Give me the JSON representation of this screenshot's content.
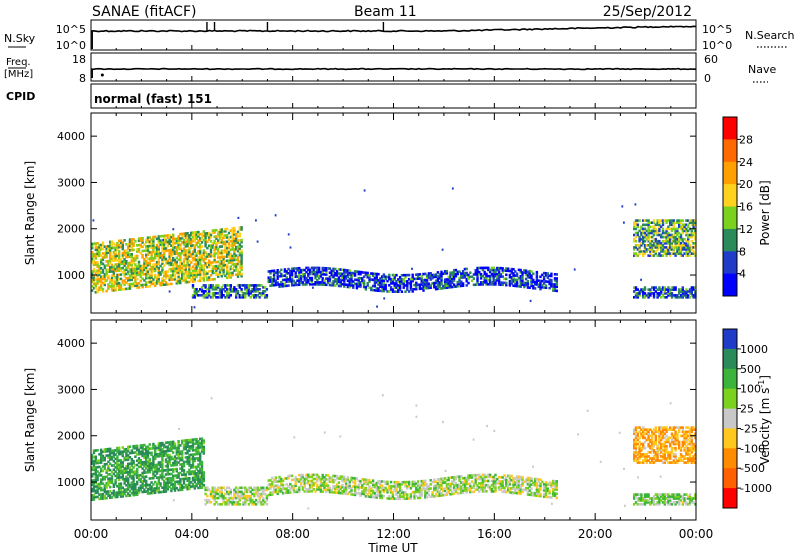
{
  "header": {
    "station": "SANAE (fitACF)",
    "beam": "Beam 11",
    "date": "25/Sep/2012"
  },
  "params": {
    "nsky_label": "N.Sky",
    "nsky_ticks": [
      "10^5",
      "10^0"
    ],
    "nsearch_label": "N.Search",
    "nsearch_ticks": [
      "10^5",
      "10^0"
    ],
    "freq_label_1": "Freq.",
    "freq_label_2": "[MHz]",
    "freq_ticks": [
      "18",
      "8"
    ],
    "nave_label": "Nave",
    "nave_ticks": [
      "60",
      "0"
    ],
    "cpid_label": "CPID",
    "cpid_value": "normal (fast) 151"
  },
  "panels": {
    "ylabel": "Slant Range [km]",
    "yticks": [
      "4000",
      "3000",
      "2000",
      "1000"
    ],
    "xlabel": "Time UT",
    "xticks": [
      "00:00",
      "04:00",
      "08:00",
      "12:00",
      "16:00",
      "20:00",
      "00:00"
    ]
  },
  "power_scale": {
    "label": "Power [dB]",
    "ticks": [
      "28",
      "24",
      "20",
      "16",
      "12",
      "8",
      "4"
    ],
    "colors": [
      "#ff0000",
      "#ff6a00",
      "#ffa000",
      "#ffd21e",
      "#7ad21e",
      "#2a8a5a",
      "#1e3cc8",
      "#0000ff"
    ]
  },
  "velocity_scale": {
    "label": "Velocity [m s",
    "label_sup": "-1",
    "label_end": "]",
    "ticks": [
      "1000",
      "500",
      "100",
      "25",
      "-25",
      "-100",
      "-500",
      "-1000"
    ],
    "colors": [
      "#1e3cc8",
      "#2a8a5a",
      "#3cb43c",
      "#7ad21e",
      "#c8c8c8",
      "#ffc81e",
      "#ff8c00",
      "#ff6000",
      "#ff0000"
    ]
  },
  "chart_data": {
    "type": "heatmap",
    "title": "SANAE (fitACF)",
    "xlabel": "Time UT",
    "ylabel": "Slant Range [km]",
    "x_range": [
      "00:00",
      "24:00"
    ],
    "ylim": [
      180,
      4500
    ],
    "panels": [
      {
        "name": "Power",
        "unit": "dB",
        "scale": [
          0,
          32
        ],
        "regions": [
          {
            "t_start": "00:00",
            "t_end": "06:00",
            "range_km": [
              600,
              1700
            ],
            "approx_value": 16
          },
          {
            "t_start": "04:00",
            "t_end": "07:00",
            "range_km": [
              500,
              800
            ],
            "approx_value": 8
          },
          {
            "t_start": "07:00",
            "t_end": "18:30",
            "range_km": [
              700,
              1100
            ],
            "approx_value": 5
          },
          {
            "t_start": "21:30",
            "t_end": "24:00",
            "range_km": [
              1400,
              2200
            ],
            "approx_value": 12
          },
          {
            "t_start": "21:30",
            "t_end": "24:00",
            "range_km": [
              500,
              750
            ],
            "approx_value": 6
          }
        ]
      },
      {
        "name": "Velocity",
        "unit": "m s-1",
        "scale": [
          -1000,
          1000
        ],
        "regions": [
          {
            "t_start": "00:00",
            "t_end": "04:30",
            "range_km": [
              600,
              1700
            ],
            "approx_value": 100
          },
          {
            "t_start": "04:30",
            "t_end": "07:00",
            "range_km": [
              500,
              900
            ],
            "approx_value": 0
          },
          {
            "t_start": "07:00",
            "t_end": "18:30",
            "range_km": [
              700,
              1100
            ],
            "approx_value": 0
          },
          {
            "t_start": "21:30",
            "t_end": "24:00",
            "range_km": [
              1400,
              2200
            ],
            "approx_value": -100
          },
          {
            "t_start": "21:30",
            "t_end": "24:00",
            "range_km": [
              500,
              750
            ],
            "approx_value": 25
          }
        ]
      }
    ]
  }
}
